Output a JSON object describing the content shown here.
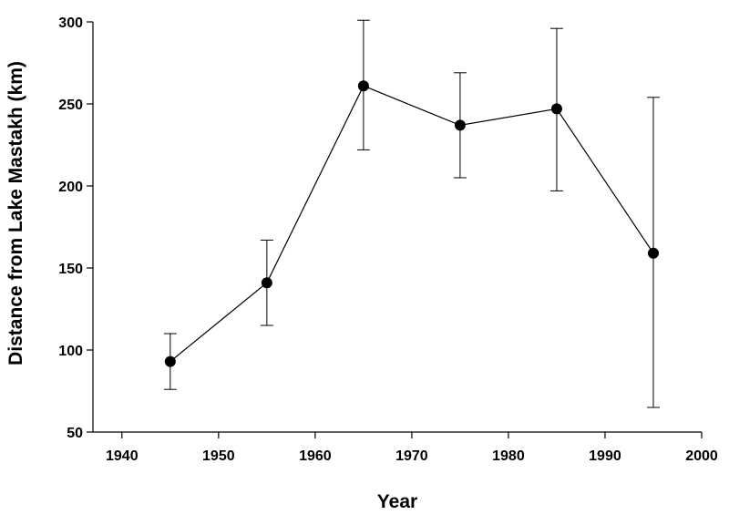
{
  "chart_data": {
    "type": "line",
    "title": "",
    "xlabel": "Year",
    "ylabel": "Distance from Lake Mastakh (km)",
    "xlim": [
      1937,
      2000
    ],
    "ylim": [
      50,
      300
    ],
    "xticks": [
      1940,
      1950,
      1960,
      1970,
      1980,
      1990,
      2000
    ],
    "yticks": [
      50,
      100,
      150,
      200,
      250,
      300
    ],
    "grid": false,
    "legend": "none",
    "series": [
      {
        "x": [
          1945,
          1955,
          1965,
          1975,
          1985,
          1995
        ],
        "y": [
          93,
          141,
          261,
          237,
          247,
          159
        ],
        "error_low": [
          76,
          115,
          222,
          205,
          197,
          65
        ],
        "error_high": [
          110,
          167,
          301,
          269,
          296,
          254
        ],
        "marker": "circle",
        "color": "#000000"
      }
    ]
  }
}
